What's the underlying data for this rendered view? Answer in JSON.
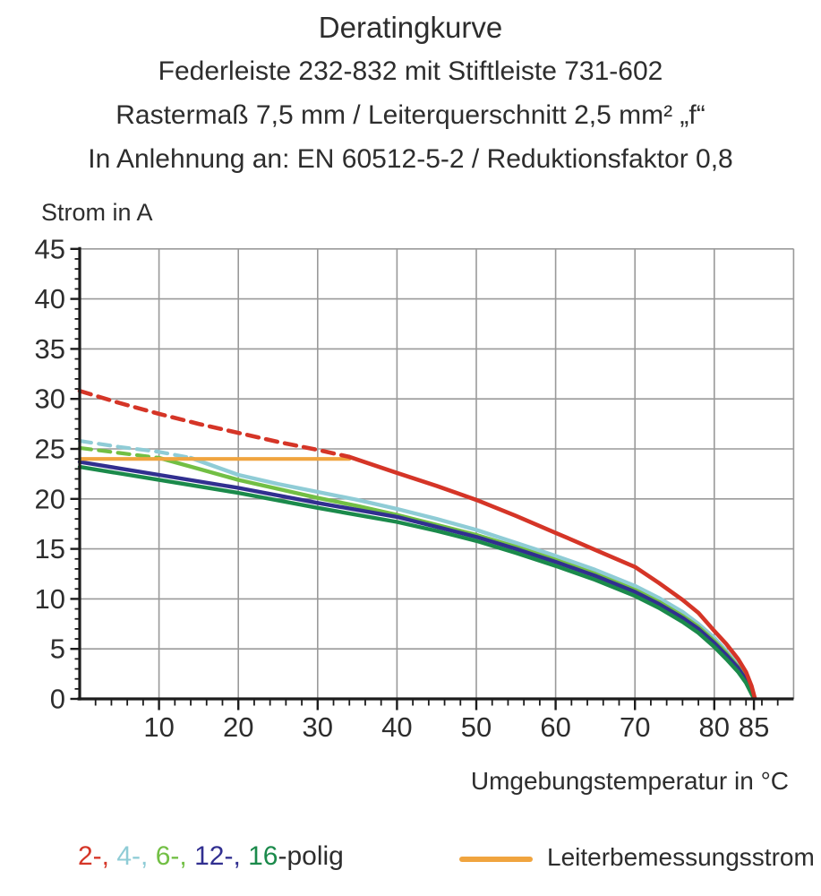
{
  "chart_data": {
    "type": "line",
    "title_lines": [
      "Deratingkurve",
      "Federleiste 232-832 mit Stiftleiste 731-602",
      "Rastermaß 7,5 mm / Leiterquerschnitt 2,5 mm² „f“",
      "In Anlehnung an: EN 60512-5-2 / Reduktionsfaktor 0,8"
    ],
    "ylabel": "Strom in A",
    "xlabel": "Umgebungstemperatur in °C",
    "xlim": [
      0,
      90
    ],
    "ylim": [
      0,
      45
    ],
    "x_major_ticks": [
      10,
      20,
      30,
      40,
      50,
      60,
      70,
      80,
      85
    ],
    "x_minor_step": 2,
    "y_major_ticks": [
      0,
      5,
      10,
      15,
      20,
      25,
      30,
      35,
      40,
      45
    ],
    "y_minor_step": 1,
    "grid": true,
    "gridline_color": "#9a9a9a",
    "axis_color": "#1c1c1c",
    "series": [
      {
        "name": "4-polig-dashed",
        "color": "#8fccd6",
        "dashed": true,
        "width": 4.2,
        "points": [
          [
            0,
            25.8
          ],
          [
            5,
            25.2
          ],
          [
            10,
            24.7
          ],
          [
            14,
            24.1
          ]
        ]
      },
      {
        "name": "6-polig-dashed",
        "color": "#72bf44",
        "dashed": true,
        "width": 4.2,
        "points": [
          [
            0,
            25.1
          ],
          [
            5,
            24.6
          ],
          [
            10,
            24.1
          ]
        ]
      },
      {
        "name": "4-polig",
        "color": "#8fccd6",
        "dashed": false,
        "width": 4.4,
        "points": [
          [
            14,
            24.1
          ],
          [
            20,
            22.4
          ],
          [
            25,
            21.5
          ],
          [
            30,
            20.7
          ],
          [
            35,
            19.9
          ],
          [
            40,
            19.0
          ],
          [
            45,
            18.0
          ],
          [
            50,
            16.9
          ],
          [
            55,
            15.6
          ],
          [
            60,
            14.3
          ],
          [
            65,
            12.9
          ],
          [
            70,
            11.3
          ],
          [
            73,
            10.1
          ],
          [
            76,
            8.7
          ],
          [
            78,
            7.5
          ],
          [
            80,
            6.1
          ],
          [
            81.5,
            4.8
          ],
          [
            83,
            3.4
          ],
          [
            84,
            2.2
          ],
          [
            84.7,
            0.9
          ],
          [
            85.1,
            0.05
          ]
        ]
      },
      {
        "name": "6-polig",
        "color": "#72bf44",
        "dashed": false,
        "width": 4.4,
        "points": [
          [
            10,
            24.1
          ],
          [
            15,
            23.0
          ],
          [
            20,
            21.9
          ],
          [
            25,
            21.0
          ],
          [
            30,
            20.1
          ],
          [
            35,
            19.3
          ],
          [
            40,
            18.4
          ],
          [
            45,
            17.4
          ],
          [
            50,
            16.4
          ],
          [
            55,
            15.2
          ],
          [
            60,
            13.9
          ],
          [
            65,
            12.5
          ],
          [
            70,
            10.9
          ],
          [
            73,
            9.7
          ],
          [
            76,
            8.3
          ],
          [
            78,
            7.2
          ],
          [
            80,
            5.8
          ],
          [
            81.5,
            4.6
          ],
          [
            83,
            3.2
          ],
          [
            84,
            2.0
          ],
          [
            84.7,
            0.8
          ],
          [
            85,
            0.05
          ]
        ]
      },
      {
        "name": "12-polig",
        "color": "#312f90",
        "dashed": false,
        "width": 4.4,
        "points": [
          [
            0,
            23.7
          ],
          [
            10,
            22.4
          ],
          [
            20,
            21.1
          ],
          [
            30,
            19.6
          ],
          [
            35,
            18.9
          ],
          [
            40,
            18.2
          ],
          [
            45,
            17.2
          ],
          [
            50,
            16.2
          ],
          [
            55,
            15.0
          ],
          [
            60,
            13.7
          ],
          [
            65,
            12.3
          ],
          [
            70,
            10.7
          ],
          [
            73,
            9.5
          ],
          [
            76,
            8.1
          ],
          [
            78,
            7.0
          ],
          [
            80,
            5.6
          ],
          [
            81.5,
            4.4
          ],
          [
            83,
            3.1
          ],
          [
            84,
            1.9
          ],
          [
            84.7,
            0.7
          ],
          [
            85,
            0.05
          ]
        ]
      },
      {
        "name": "16-polig",
        "color": "#1b8a4b",
        "dashed": false,
        "width": 4.4,
        "points": [
          [
            0,
            23.2
          ],
          [
            10,
            21.9
          ],
          [
            20,
            20.6
          ],
          [
            30,
            19.1
          ],
          [
            35,
            18.4
          ],
          [
            40,
            17.7
          ],
          [
            45,
            16.8
          ],
          [
            50,
            15.8
          ],
          [
            55,
            14.6
          ],
          [
            60,
            13.3
          ],
          [
            65,
            11.9
          ],
          [
            70,
            10.3
          ],
          [
            73,
            9.1
          ],
          [
            76,
            7.7
          ],
          [
            78,
            6.6
          ],
          [
            80,
            5.2
          ],
          [
            81.5,
            4.0
          ],
          [
            83,
            2.7
          ],
          [
            84,
            1.6
          ],
          [
            84.7,
            0.5
          ],
          [
            85,
            0.05
          ]
        ]
      },
      {
        "name": "Leiterbemessungsstrom",
        "color": "#f0a43f",
        "dashed": false,
        "width": 4.2,
        "points": [
          [
            0,
            24
          ],
          [
            34,
            24
          ]
        ]
      },
      {
        "name": "2-polig-dashed",
        "color": "#d53527",
        "dashed": true,
        "width": 4.6,
        "points": [
          [
            0,
            30.8
          ],
          [
            5,
            29.6
          ],
          [
            10,
            28.5
          ],
          [
            15,
            27.5
          ],
          [
            20,
            26.6
          ],
          [
            25,
            25.7
          ],
          [
            30,
            24.9
          ],
          [
            34,
            24.2
          ]
        ]
      },
      {
        "name": "2-polig",
        "color": "#d53527",
        "dashed": false,
        "width": 4.6,
        "points": [
          [
            34,
            24.2
          ],
          [
            40,
            22.6
          ],
          [
            45,
            21.3
          ],
          [
            50,
            19.9
          ],
          [
            55,
            18.3
          ],
          [
            60,
            16.6
          ],
          [
            65,
            14.9
          ],
          [
            70,
            13.2
          ],
          [
            73,
            11.6
          ],
          [
            76,
            9.9
          ],
          [
            78,
            8.6
          ],
          [
            80,
            6.8
          ],
          [
            81.5,
            5.5
          ],
          [
            83,
            4.0
          ],
          [
            84,
            2.7
          ],
          [
            84.7,
            1.3
          ],
          [
            85.1,
            0.1
          ]
        ]
      }
    ]
  },
  "legend": {
    "polig_parts": [
      {
        "text": "2-, ",
        "color": "#d53527"
      },
      {
        "text": "4-, ",
        "color": "#8fccd6"
      },
      {
        "text": "6-, ",
        "color": "#72bf44"
      },
      {
        "text": "12-, ",
        "color": "#312f90"
      },
      {
        "text": "16",
        "color": "#1b8a4b"
      },
      {
        "text": "-polig",
        "color": "#2d2d2d"
      }
    ],
    "rated": {
      "label": "Leiterbemessungsstrom",
      "color": "#f0a43f"
    }
  }
}
